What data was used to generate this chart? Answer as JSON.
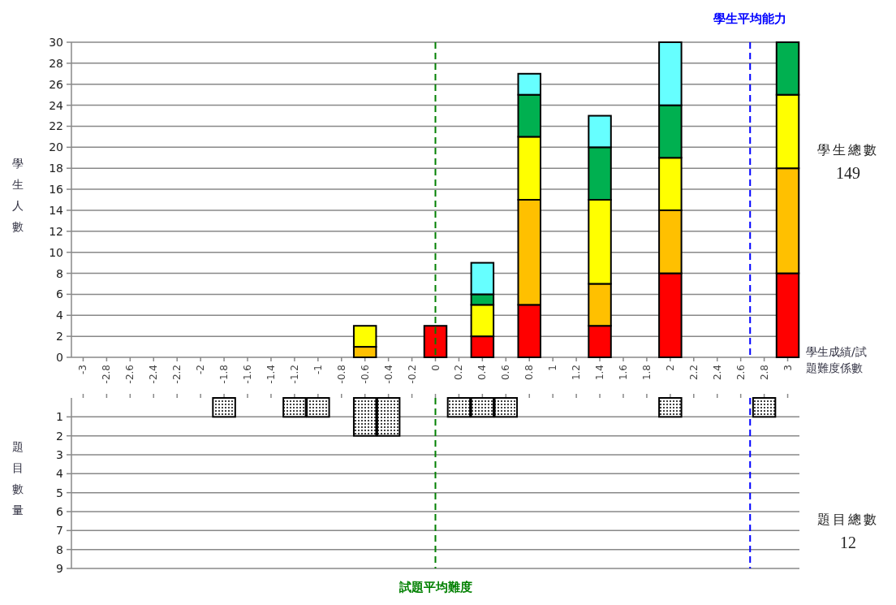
{
  "chart_data": [
    {
      "type": "bar",
      "stacked": true,
      "xlabel": "學生成績/試題難度係數",
      "ylabel": "學生人數",
      "x": [
        -0.6,
        0,
        0.4,
        0.8,
        1.4,
        2,
        3
      ],
      "xlim": [
        -3.1,
        3.1
      ],
      "xticks": [
        -3,
        -2.8,
        -2.6,
        -2.4,
        -2.2,
        -2,
        -1.8,
        -1.6,
        -1.4,
        -1.2,
        -1,
        -0.8,
        -0.6,
        -0.4,
        -0.2,
        0,
        0.2,
        0.4,
        0.6,
        0.8,
        1,
        1.2,
        1.4,
        1.6,
        1.8,
        2,
        2.2,
        2.4,
        2.6,
        2.8,
        3
      ],
      "ylim": [
        0,
        30
      ],
      "yticks": [
        0,
        2,
        4,
        6,
        8,
        10,
        12,
        14,
        16,
        18,
        20,
        22,
        24,
        26,
        28,
        30
      ],
      "grid": "y",
      "series": [
        {
          "color": "#ff0000",
          "values": [
            null,
            3,
            2,
            5,
            3,
            8,
            8
          ]
        },
        {
          "color": "#ffc000",
          "values": [
            1,
            null,
            null,
            10,
            4,
            6,
            10
          ]
        },
        {
          "color": "#ffff00",
          "values": [
            2,
            null,
            3,
            6,
            8,
            5,
            7
          ]
        },
        {
          "color": "#00b050",
          "values": [
            null,
            null,
            1,
            4,
            5,
            5,
            5
          ]
        },
        {
          "color": "#66ffff",
          "values": [
            null,
            null,
            3,
            2,
            3,
            6,
            null
          ]
        }
      ],
      "ref_lines": [
        {
          "axis": "x",
          "value": 2.68,
          "label": "學生平均能力",
          "color": "#0000ff",
          "line_style": "dashed"
        },
        {
          "axis": "x",
          "value": 0,
          "color": "#008000",
          "line_style": "dashed"
        }
      ],
      "annotations": [
        "學生總數",
        "149"
      ]
    },
    {
      "type": "bar",
      "tick_labels": "y",
      "ylabel": "題目數量",
      "x": [
        -1.8,
        -1.2,
        -1,
        -0.6,
        -0.4,
        0.2,
        0.4,
        0.6,
        2,
        2.8
      ],
      "xlim": [
        -3.1,
        3.1
      ],
      "xticks": [
        -3,
        -2.8,
        -2.6,
        -2.4,
        -2.2,
        -2,
        -1.8,
        -1.6,
        -1.4,
        -1.2,
        -1,
        -0.8,
        -0.6,
        -0.4,
        -0.2,
        0,
        0.2,
        0.4,
        0.6,
        0.8,
        1,
        1.2,
        1.4,
        1.6,
        1.8,
        2,
        2.2,
        2.4,
        2.6,
        2.8,
        3
      ],
      "ylim": [
        9,
        0
      ],
      "yticks": [
        1,
        2,
        3,
        4,
        5,
        6,
        7,
        8,
        9
      ],
      "grid": "y",
      "series": [
        {
          "color": "#000000",
          "values": [
            1,
            1,
            1,
            2,
            2,
            1,
            1,
            1,
            1,
            1
          ]
        }
      ],
      "ref_lines": [
        {
          "axis": "x",
          "value": 0,
          "label": "試題平均難度",
          "color": "#008000",
          "line_style": "dashed"
        },
        {
          "axis": "x",
          "value": 2.68,
          "color": "#0000ff",
          "line_style": "dashed"
        }
      ],
      "annotations": [
        "題目總數",
        "12"
      ]
    }
  ]
}
